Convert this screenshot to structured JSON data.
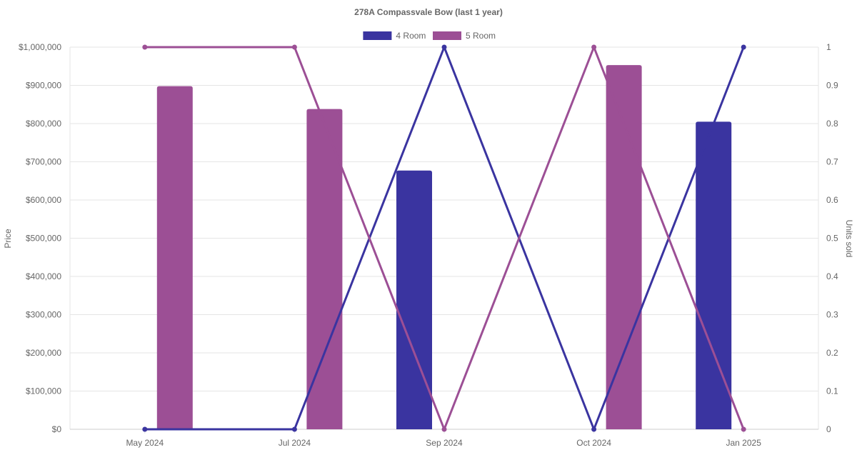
{
  "chart_data": {
    "type": "bar+line",
    "title": "278A Compassvale Bow (last 1 year)",
    "categories": [
      "May 2024",
      "Jul 2024",
      "Sep 2024",
      "Oct 2024",
      "Jan 2025"
    ],
    "y_left": {
      "label": "Price",
      "ylim": [
        0,
        1000000
      ],
      "ticks": [
        "$0",
        "$100,000",
        "$200,000",
        "$300,000",
        "$400,000",
        "$500,000",
        "$600,000",
        "$700,000",
        "$800,000",
        "$900,000",
        "$1,000,000"
      ]
    },
    "y_right": {
      "label": "Units sold",
      "ylim": [
        0,
        1
      ],
      "ticks": [
        "0",
        "0.1",
        "0.2",
        "0.3",
        "0.4",
        "0.5",
        "0.6",
        "0.7",
        "0.8",
        "0.9",
        "1"
      ]
    },
    "legend_position": "top-center",
    "grid": true,
    "series": [
      {
        "name": "4 Room",
        "color": "#3a34a0",
        "price": [
          null,
          null,
          677000,
          null,
          805000
        ],
        "units_sold": [
          0,
          0,
          1,
          0,
          1
        ]
      },
      {
        "name": "5 Room",
        "color": "#9c4f95",
        "price": [
          898000,
          838000,
          null,
          953000,
          null
        ],
        "units_sold": [
          1,
          1,
          0,
          1,
          0
        ]
      }
    ]
  }
}
